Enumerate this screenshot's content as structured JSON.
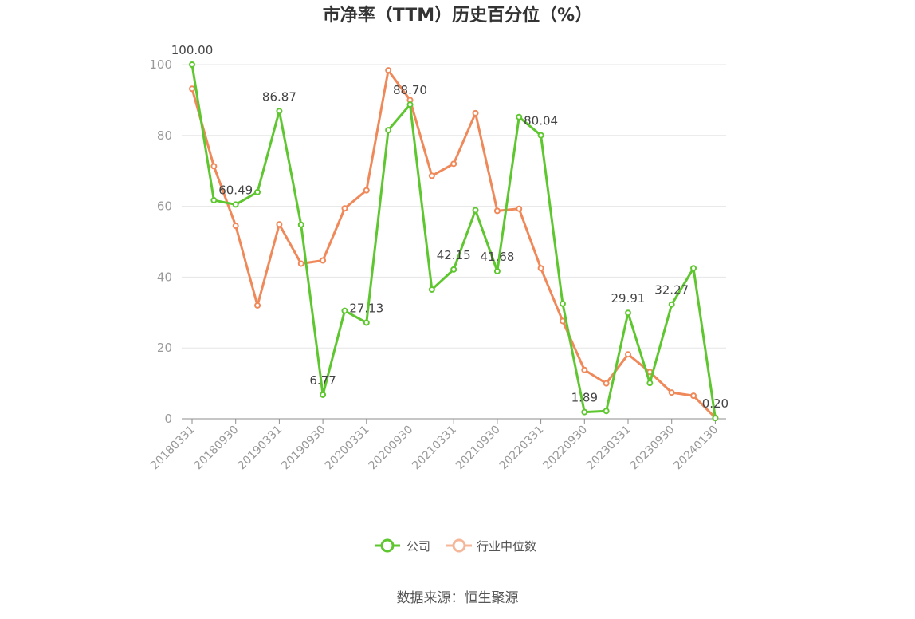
{
  "chart_data": {
    "type": "line",
    "title": "市净率（TTM）历史百分位（%）",
    "source": "数据来源：恒生聚源",
    "ylim": [
      0,
      100
    ],
    "yticks": [
      0,
      20,
      40,
      60,
      80,
      100
    ],
    "grid": true,
    "legend_position": "bottom",
    "x": [
      "20180331",
      "20180630",
      "20180930",
      "20181231",
      "20190331",
      "20190630",
      "20190930",
      "20191231",
      "20200331",
      "20200630",
      "20200930",
      "20201231",
      "20210331",
      "20210630",
      "20210930",
      "20211231",
      "20220331",
      "20220630",
      "20220930",
      "20221231",
      "20230331",
      "20230630",
      "20230930",
      "20231231",
      "20240130"
    ],
    "xtick_labels": [
      "20180331",
      "20180930",
      "20190331",
      "20190930",
      "20200331",
      "20200930",
      "20210331",
      "20210930",
      "20220331",
      "20220930",
      "20230331",
      "20230930",
      "20240130"
    ],
    "series": [
      {
        "name": "公司",
        "color": "#5ec72f",
        "values": [
          100.0,
          61.7,
          60.49,
          64.0,
          86.87,
          54.8,
          6.77,
          30.5,
          27.13,
          81.5,
          88.7,
          36.5,
          42.15,
          58.9,
          41.68,
          85.2,
          80.04,
          32.5,
          1.89,
          2.2,
          29.91,
          10.1,
          32.27,
          42.5,
          0.2
        ],
        "labels": {
          "0": "100.00",
          "2": "60.49",
          "4": "86.87",
          "6": "6.77",
          "8": "27.13",
          "10": "88.70",
          "12": "42.15",
          "14": "41.68",
          "16": "80.04",
          "18": "1.89",
          "20": "29.91",
          "22": "32.27",
          "24": "0.20"
        }
      },
      {
        "name": "行业中位数",
        "color": "#f0895a",
        "values": [
          93.2,
          71.3,
          54.5,
          32.0,
          54.9,
          43.8,
          44.7,
          59.4,
          64.5,
          98.4,
          90.0,
          68.6,
          72.0,
          86.3,
          58.7,
          59.3,
          42.5,
          27.6,
          13.8,
          10.0,
          18.2,
          13.2,
          7.4,
          6.5,
          0.3
        ]
      }
    ]
  }
}
